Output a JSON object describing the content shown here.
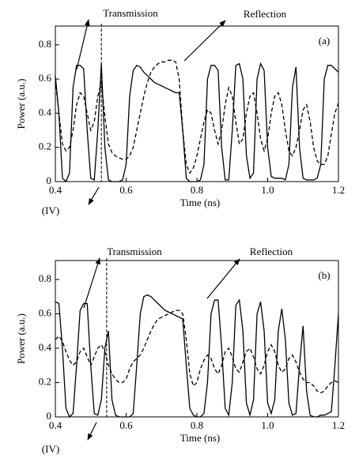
{
  "chart_data": [
    {
      "type": "line",
      "panel_label": "(a)",
      "marker_label": "(IV)",
      "xlabel": "Time (ns)",
      "ylabel": "Power (a.u.)",
      "xlim": [
        0.4,
        1.2
      ],
      "ylim": [
        0,
        0.91
      ],
      "xticks": [
        0.4,
        0.6,
        0.8,
        {
          "value": 1,
          "label": "1.0"
        },
        1.2
      ],
      "yticks": [
        0,
        0.2,
        0.4,
        0.6,
        0.8
      ],
      "vline": 0.53,
      "x": [
        0.4,
        0.41,
        0.42,
        0.43,
        0.44,
        0.45,
        0.46,
        0.47,
        0.48,
        0.49,
        0.5,
        0.51,
        0.52,
        0.53,
        0.54,
        0.55,
        0.56,
        0.57,
        0.58,
        0.59,
        0.6,
        0.61,
        0.62,
        0.63,
        0.64,
        0.65,
        0.66,
        0.67,
        0.68,
        0.69,
        0.7,
        0.71,
        0.72,
        0.73,
        0.74,
        0.75,
        0.76,
        0.77,
        0.78,
        0.79,
        0.8,
        0.81,
        0.82,
        0.83,
        0.84,
        0.85,
        0.86,
        0.87,
        0.88,
        0.89,
        0.9,
        0.91,
        0.92,
        0.93,
        0.94,
        0.95,
        0.96,
        0.97,
        0.98,
        0.99,
        1.0,
        1.01,
        1.02,
        1.03,
        1.04,
        1.05,
        1.06,
        1.07,
        1.08,
        1.09,
        1.1,
        1.11,
        1.12,
        1.13,
        1.14,
        1.15,
        1.16,
        1.17,
        1.18,
        1.19,
        1.2
      ],
      "series": [
        {
          "name": "Transmission",
          "color": "#000000",
          "dashed": false,
          "values": [
            0.62,
            0.4,
            0.02,
            0,
            0.05,
            0.55,
            0.68,
            0.68,
            0.66,
            0.3,
            0.02,
            0.01,
            0.3,
            0.69,
            0.2,
            0.01,
            0,
            0,
            0,
            0.01,
            0.1,
            0.5,
            0.65,
            0.68,
            0.67,
            0.64,
            0.62,
            0.6,
            0.58,
            0.57,
            0.56,
            0.55,
            0.54,
            0.53,
            0.52,
            0.52,
            0.3,
            0.02,
            0,
            0,
            0,
            0.01,
            0.1,
            0.6,
            0.68,
            0.68,
            0.65,
            0.2,
            0.01,
            0.01,
            0.3,
            0.68,
            0.69,
            0.6,
            0.15,
            0.02,
            0.05,
            0.6,
            0.69,
            0.65,
            0.2,
            0.03,
            0.02,
            0.02,
            0.02,
            0.01,
            0.1,
            0.55,
            0.67,
            0.2,
            0.02,
            0.01,
            0.01,
            0.01,
            0.02,
            0.1,
            0.6,
            0.68,
            0.68,
            0.66,
            0.64
          ]
        },
        {
          "name": "Reflection",
          "color": "#000000",
          "dashed": true,
          "values": [
            0.6,
            0.4,
            0.22,
            0.18,
            0.2,
            0.3,
            0.45,
            0.52,
            0.5,
            0.4,
            0.3,
            0.35,
            0.5,
            0.58,
            0.38,
            0.22,
            0.17,
            0.15,
            0.14,
            0.13,
            0.13,
            0.15,
            0.2,
            0.3,
            0.4,
            0.5,
            0.58,
            0.64,
            0.67,
            0.69,
            0.7,
            0.7,
            0.71,
            0.71,
            0.7,
            0.6,
            0.3,
            0.1,
            0.05,
            0.08,
            0.15,
            0.25,
            0.35,
            0.42,
            0.4,
            0.3,
            0.22,
            0.3,
            0.45,
            0.55,
            0.5,
            0.35,
            0.22,
            0.25,
            0.4,
            0.5,
            0.52,
            0.4,
            0.25,
            0.18,
            0.25,
            0.4,
            0.5,
            0.52,
            0.45,
            0.3,
            0.18,
            0.15,
            0.2,
            0.3,
            0.42,
            0.45,
            0.35,
            0.2,
            0.12,
            0.1,
            0.1,
            0.15,
            0.28,
            0.4,
            0.46
          ]
        }
      ]
    },
    {
      "type": "line",
      "panel_label": "(b)",
      "marker_label": "(IV)",
      "xlabel": "Time (ns)",
      "ylabel": "Power (a.u.)",
      "xlim": [
        0.4,
        1.2
      ],
      "ylim": [
        0,
        0.91
      ],
      "xticks": [
        0.4,
        0.6,
        0.8,
        {
          "value": 1,
          "label": "1.0"
        },
        1.2
      ],
      "yticks": [
        0,
        0.2,
        0.4,
        0.6,
        0.8
      ],
      "vline": 0.545,
      "x": [
        0.4,
        0.41,
        0.42,
        0.43,
        0.44,
        0.45,
        0.46,
        0.47,
        0.48,
        0.49,
        0.5,
        0.51,
        0.52,
        0.53,
        0.54,
        0.55,
        0.56,
        0.57,
        0.58,
        0.59,
        0.6,
        0.61,
        0.62,
        0.63,
        0.64,
        0.65,
        0.66,
        0.67,
        0.68,
        0.69,
        0.7,
        0.71,
        0.72,
        0.73,
        0.74,
        0.75,
        0.76,
        0.77,
        0.78,
        0.79,
        0.8,
        0.81,
        0.82,
        0.83,
        0.84,
        0.85,
        0.86,
        0.87,
        0.88,
        0.89,
        0.9,
        0.91,
        0.92,
        0.93,
        0.94,
        0.95,
        0.96,
        0.97,
        0.98,
        0.99,
        1.0,
        1.01,
        1.02,
        1.03,
        1.04,
        1.05,
        1.06,
        1.07,
        1.08,
        1.09,
        1.1,
        1.11,
        1.12,
        1.13,
        1.14,
        1.15,
        1.16,
        1.17,
        1.18,
        1.19,
        1.2
      ],
      "series": [
        {
          "name": "Transmission",
          "color": "#000000",
          "dashed": false,
          "values": [
            0.67,
            0.66,
            0.4,
            0.05,
            0,
            0.02,
            0.3,
            0.62,
            0.66,
            0.66,
            0.3,
            0.02,
            0.01,
            0.1,
            0.4,
            0.5,
            0.1,
            0.01,
            0,
            0,
            0,
            0,
            0.02,
            0.3,
            0.6,
            0.7,
            0.71,
            0.7,
            0.68,
            0.66,
            0.64,
            0.62,
            0.61,
            0.6,
            0.59,
            0.58,
            0.57,
            0.3,
            0.05,
            0.01,
            0,
            0,
            0.02,
            0.2,
            0.6,
            0.68,
            0.68,
            0.4,
            0.05,
            0.01,
            0.2,
            0.65,
            0.68,
            0.5,
            0.08,
            0.01,
            0.1,
            0.6,
            0.67,
            0.5,
            0.08,
            0.02,
            0.1,
            0.5,
            0.63,
            0.45,
            0.08,
            0.01,
            0.02,
            0.3,
            0.53,
            0.15,
            0.01,
            0,
            0,
            0.01,
            0.01,
            0.02,
            0.03,
            0.3,
            0.6
          ]
        },
        {
          "name": "Reflection",
          "color": "#000000",
          "dashed": true,
          "values": [
            0.45,
            0.47,
            0.44,
            0.38,
            0.33,
            0.3,
            0.32,
            0.38,
            0.4,
            0.35,
            0.3,
            0.35,
            0.4,
            0.42,
            0.38,
            0.3,
            0.25,
            0.22,
            0.2,
            0.2,
            0.22,
            0.28,
            0.32,
            0.34,
            0.36,
            0.4,
            0.45,
            0.5,
            0.54,
            0.57,
            0.58,
            0.59,
            0.6,
            0.61,
            0.62,
            0.62,
            0.6,
            0.45,
            0.25,
            0.18,
            0.2,
            0.28,
            0.33,
            0.36,
            0.34,
            0.28,
            0.25,
            0.3,
            0.38,
            0.4,
            0.35,
            0.28,
            0.26,
            0.32,
            0.38,
            0.4,
            0.35,
            0.28,
            0.25,
            0.3,
            0.38,
            0.42,
            0.38,
            0.3,
            0.26,
            0.28,
            0.34,
            0.36,
            0.32,
            0.26,
            0.22,
            0.2,
            0.2,
            0.18,
            0.15,
            0.14,
            0.15,
            0.18,
            0.2,
            0.21,
            0.2
          ]
        }
      ]
    }
  ]
}
